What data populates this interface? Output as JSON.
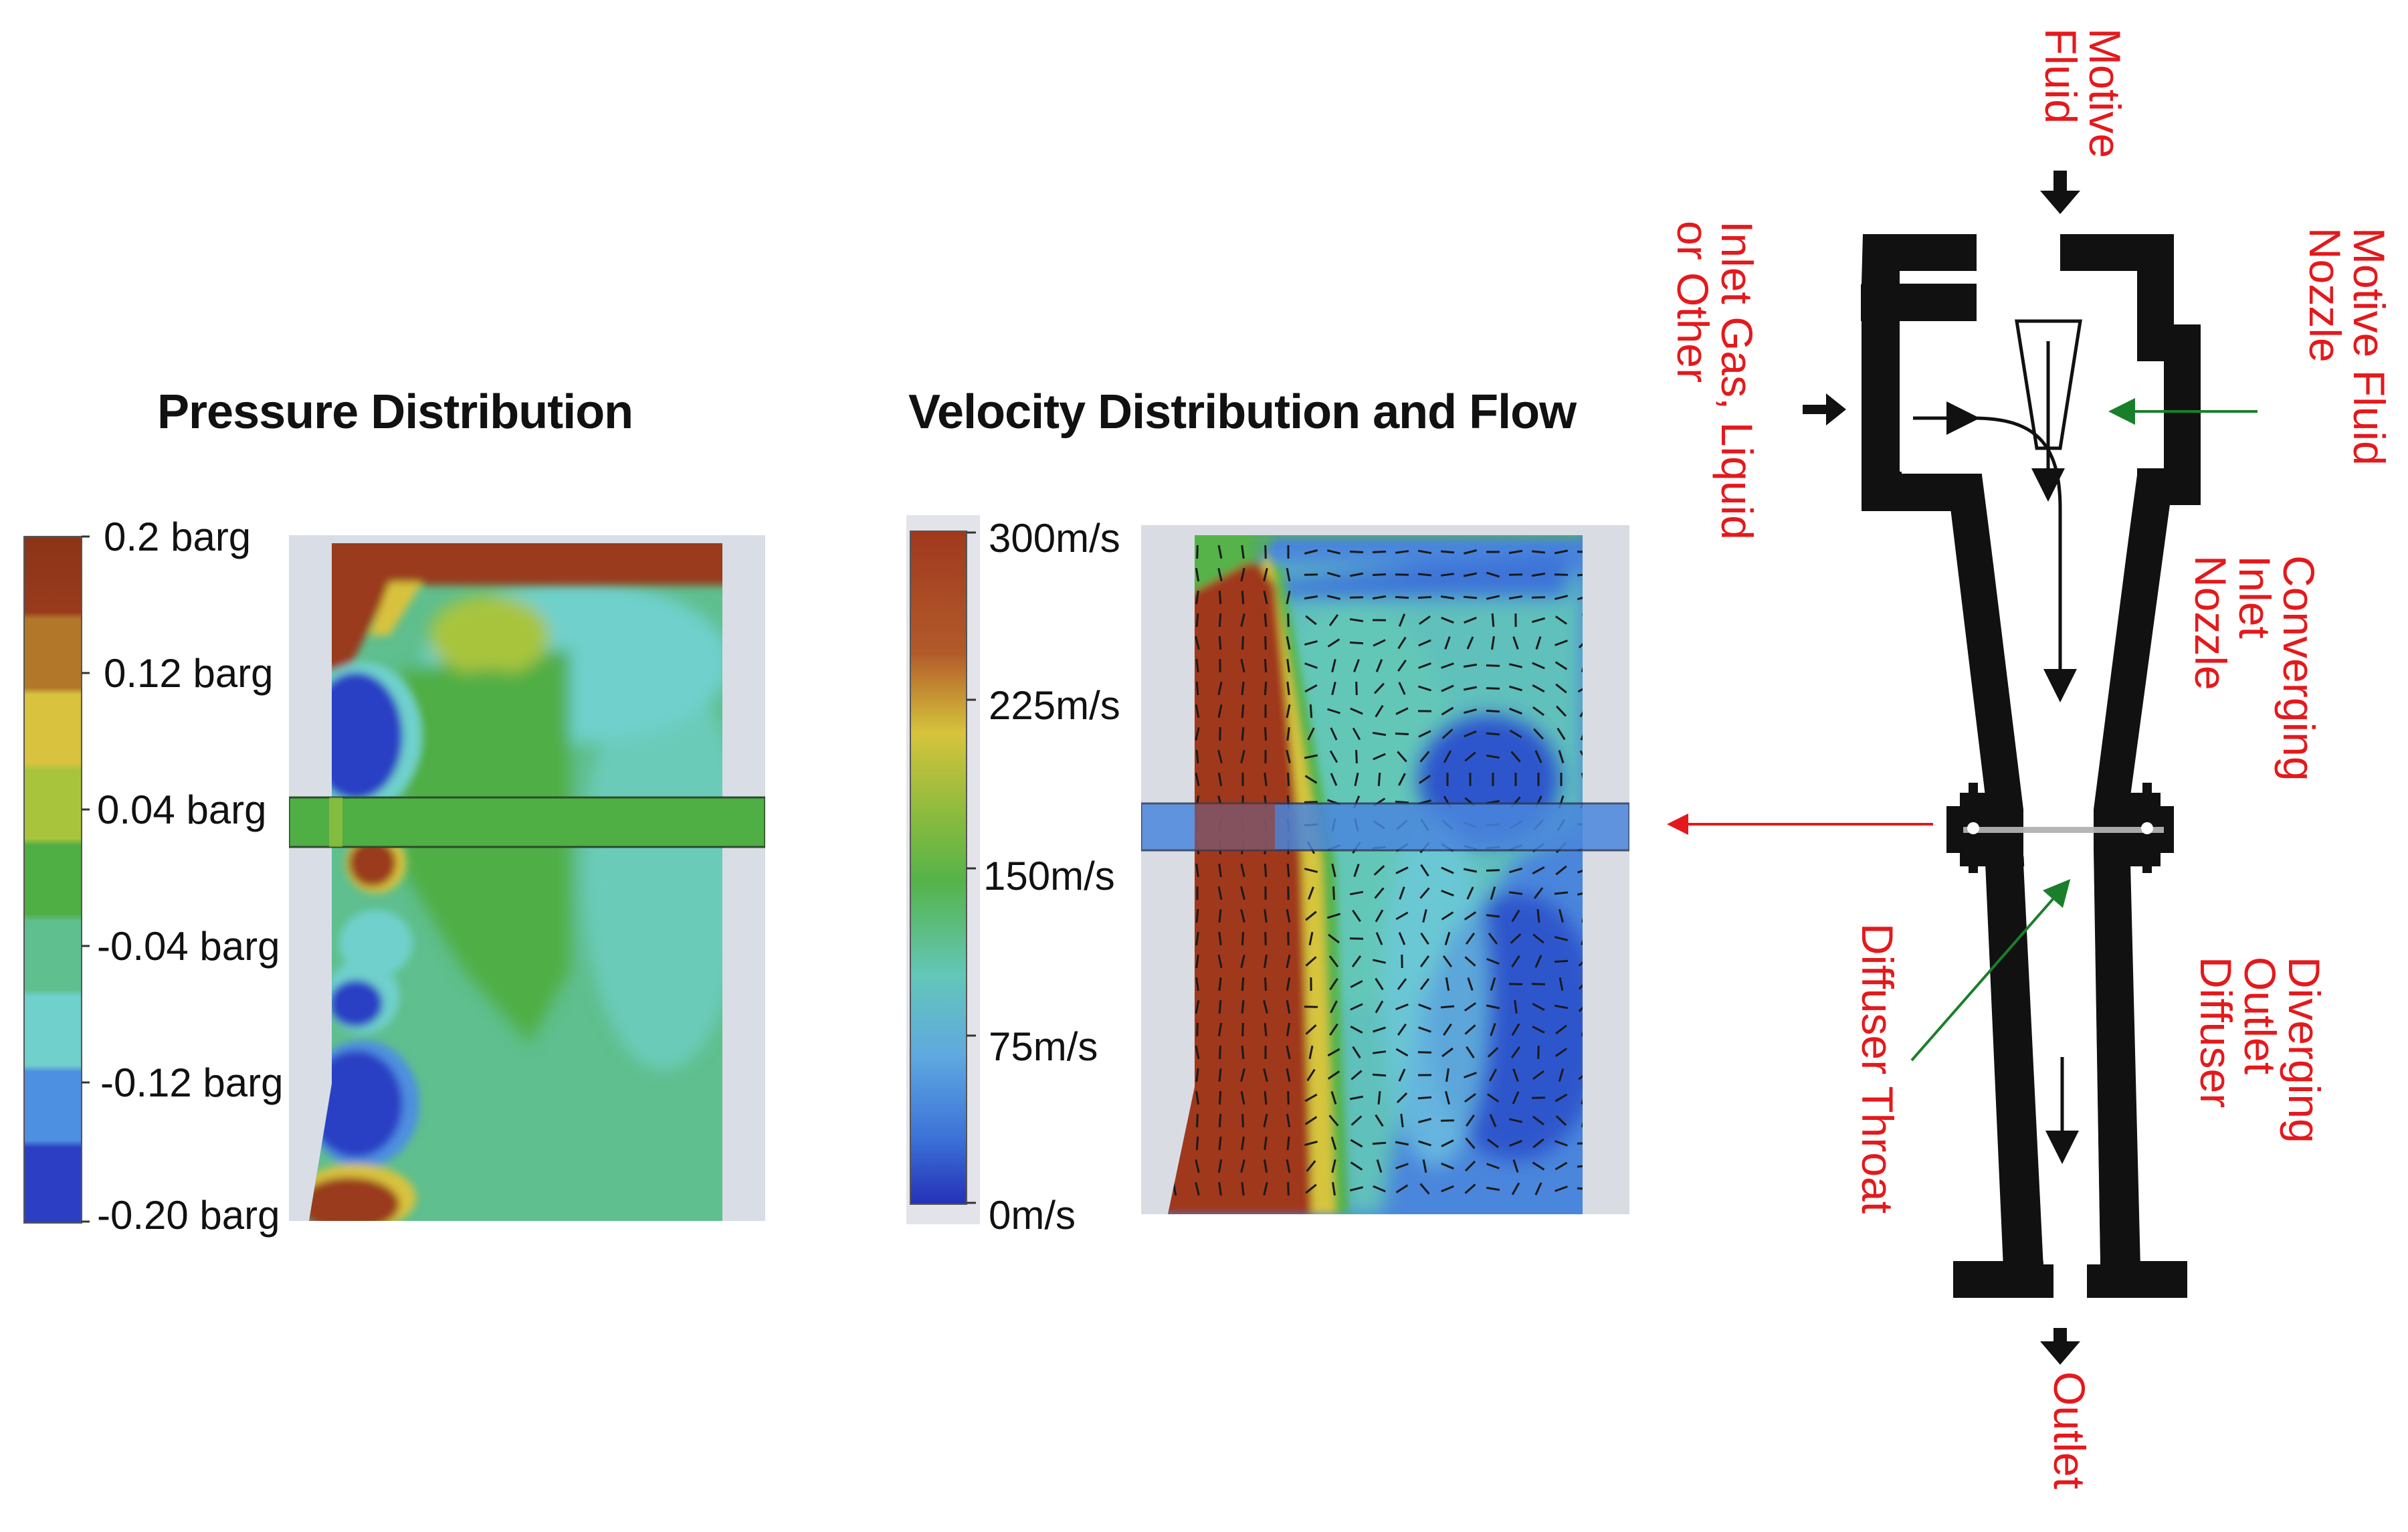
{
  "pressure": {
    "title": "Pressure Distribution",
    "scale_labels": [
      "0.2 barg",
      "0.12 barg",
      "0.04 barg",
      "-0.04 barg",
      "-0.12 barg",
      "-0.20 barg"
    ],
    "colors": [
      "#993a1c",
      "#b3772a",
      "#d8c23e",
      "#a8c43c",
      "#4fae44",
      "#5fbf8e",
      "#6fd0cc",
      "#4d8fe0",
      "#2c3fc4"
    ]
  },
  "velocity": {
    "title": "Velocity Distribution and Flow",
    "scale_labels": [
      "300m/s",
      "225m/s",
      "150m/s",
      "75m/s",
      "0m/s"
    ],
    "colors": [
      "#a0391e",
      "#c8743a",
      "#d6c43c",
      "#55b34a",
      "#63c7b8",
      "#3c73d8",
      "#2630b8"
    ]
  },
  "diagram": {
    "labels": {
      "motive_fluid": "Motive\nFluid",
      "motive_fluid_nozzle": "Motive Fluid\nNozzle",
      "inlet": "Inlet Gas, Liquid\nor Other",
      "converging": "Converging\nInlet\nNozzle",
      "diverging": "Diverging\nOutlet\nDiffuser",
      "throat": "Diffuser Throat",
      "outlet": "Outlet"
    },
    "label_color": "#e4191c",
    "pointer_color": "#1a7f2a"
  }
}
